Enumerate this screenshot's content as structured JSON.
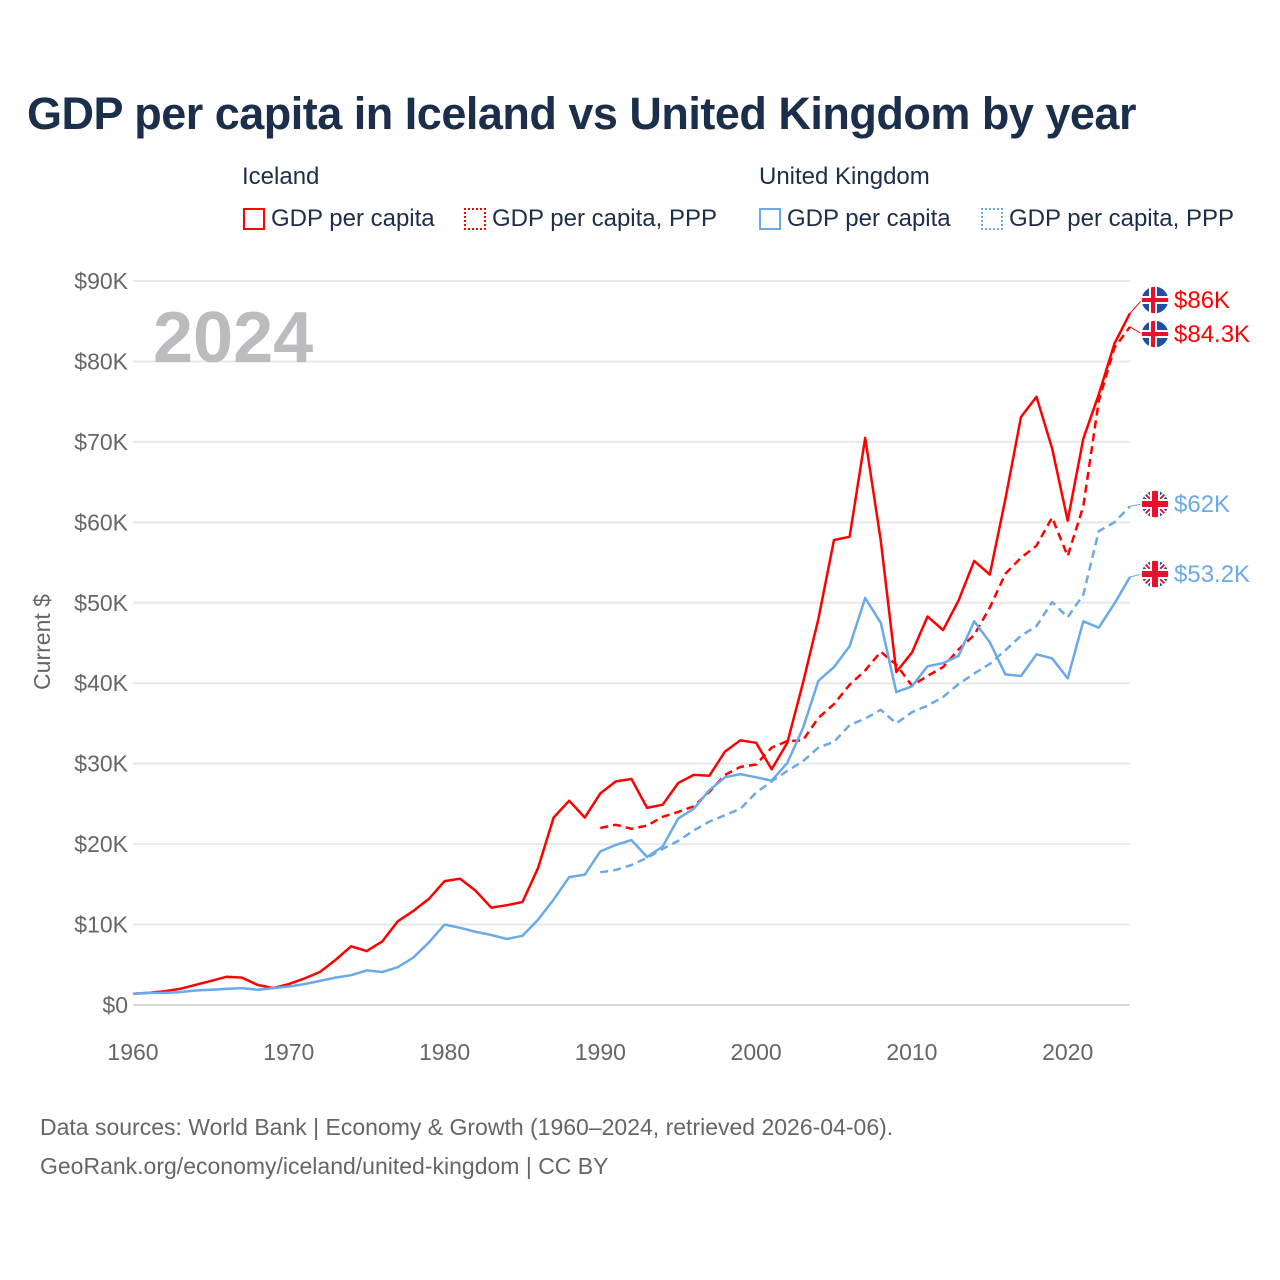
{
  "chart_data": {
    "type": "line",
    "title": "GDP per capita in Iceland vs United Kingdom by year",
    "ylabel": "Current $",
    "xlabel": "",
    "year_label": "2024",
    "xlim": [
      1960,
      2024
    ],
    "ylim": [
      0,
      90000
    ],
    "x_ticks": [
      1960,
      1970,
      1980,
      1990,
      2000,
      2010,
      2020
    ],
    "x_tick_labels": [
      "1960",
      "1970",
      "1980",
      "1990",
      "2000",
      "2010",
      "2020"
    ],
    "y_ticks": [
      0,
      10000,
      20000,
      30000,
      40000,
      50000,
      60000,
      70000,
      80000,
      90000
    ],
    "y_tick_labels": [
      "$0",
      "$10K",
      "$20K",
      "$30K",
      "$40K",
      "$50K",
      "$60K",
      "$70K",
      "$80K",
      "$90K"
    ],
    "grid": true,
    "legend": {
      "placement": "top",
      "groups": [
        {
          "name": "Iceland",
          "items": [
            "GDP per capita",
            "GDP per capita, PPP"
          ]
        },
        {
          "name": "United Kingdom",
          "items": [
            "GDP per capita",
            "GDP per capita, PPP"
          ]
        }
      ]
    },
    "series": [
      {
        "name": "Iceland GDP per capita",
        "country": "Iceland",
        "color": "#ff0000",
        "dashed": false,
        "start": 1960,
        "end_label": "$86K",
        "values": [
          1.4,
          1.5,
          1.7,
          2.0,
          2.5,
          3.0,
          3.5,
          3.4,
          2.5,
          2.1,
          2.6,
          3.3,
          4.1,
          5.6,
          7.3,
          6.7,
          7.9,
          10.4,
          11.7,
          13.2,
          15.4,
          15.7,
          14.2,
          12.1,
          12.4,
          12.8,
          17.0,
          23.3,
          25.4,
          23.3,
          26.3,
          27.8,
          28.1,
          24.5,
          24.9,
          27.6,
          28.6,
          28.5,
          31.5,
          32.9,
          32.6,
          29.3,
          32.6,
          40.0,
          48.0,
          57.8,
          58.2,
          70.5,
          57.7,
          41.4,
          43.8,
          48.3,
          46.6,
          50.3,
          55.2,
          53.5,
          62.9,
          73.1,
          75.6,
          69.2,
          60.2,
          70.4,
          75.9,
          82.2,
          86.0
        ]
      },
      {
        "name": "Iceland GDP per capita, PPP",
        "country": "Iceland",
        "color": "#ff0000",
        "dashed": true,
        "start": 1990,
        "end_label": "$84.3K",
        "values": [
          22.0,
          22.4,
          21.9,
          22.3,
          23.4,
          24.0,
          24.7,
          26.5,
          28.6,
          29.6,
          29.9,
          32.0,
          32.8,
          32.9,
          35.7,
          37.4,
          39.8,
          41.6,
          43.9,
          42.3,
          39.7,
          40.9,
          42.0,
          44.2,
          46.0,
          49.4,
          53.6,
          55.6,
          57.1,
          60.6,
          55.8,
          62.0,
          75.1,
          81.7,
          84.3
        ]
      },
      {
        "name": "United Kingdom GDP per capita",
        "country": "United Kingdom",
        "color": "#6aaae8",
        "dashed": false,
        "start": 1960,
        "end_label": "$53.2K",
        "values": [
          1.4,
          1.5,
          1.5,
          1.6,
          1.8,
          1.9,
          2.0,
          2.1,
          1.9,
          2.1,
          2.3,
          2.6,
          3.0,
          3.4,
          3.7,
          4.3,
          4.1,
          4.7,
          5.9,
          7.8,
          10.0,
          9.6,
          9.1,
          8.7,
          8.2,
          8.6,
          10.6,
          13.1,
          15.9,
          16.2,
          19.1,
          19.9,
          20.5,
          18.4,
          19.7,
          23.2,
          24.4,
          26.7,
          28.3,
          28.7,
          28.3,
          27.9,
          30.1,
          34.4,
          40.3,
          42.0,
          44.6,
          50.6,
          47.5,
          38.9,
          39.6,
          42.1,
          42.5,
          43.4,
          47.7,
          45.1,
          41.1,
          40.9,
          43.6,
          43.1,
          40.6,
          47.7,
          46.9,
          49.9,
          53.2
        ]
      },
      {
        "name": "United Kingdom GDP per capita, PPP",
        "country": "United Kingdom",
        "color": "#6aaae8",
        "dashed": true,
        "start": 1990,
        "end_label": "$62K",
        "values": [
          16.5,
          16.8,
          17.4,
          18.3,
          19.4,
          20.4,
          21.7,
          22.8,
          23.6,
          24.4,
          26.4,
          27.8,
          29.1,
          30.3,
          32.0,
          32.7,
          34.8,
          35.6,
          36.7,
          35.0,
          36.4,
          37.2,
          38.3,
          39.9,
          41.2,
          42.4,
          44.1,
          45.9,
          47.1,
          50.1,
          48.2,
          51.0,
          58.9,
          60.0,
          62.0
        ]
      }
    ],
    "value_unit": "thousand US$"
  },
  "footer": {
    "line1": "Data sources: World Bank | Economy & Growth (1960–2024, retrieved 2026-04-06).",
    "line2": "GeoRank.org/economy/iceland/united-kingdom | CC BY"
  }
}
